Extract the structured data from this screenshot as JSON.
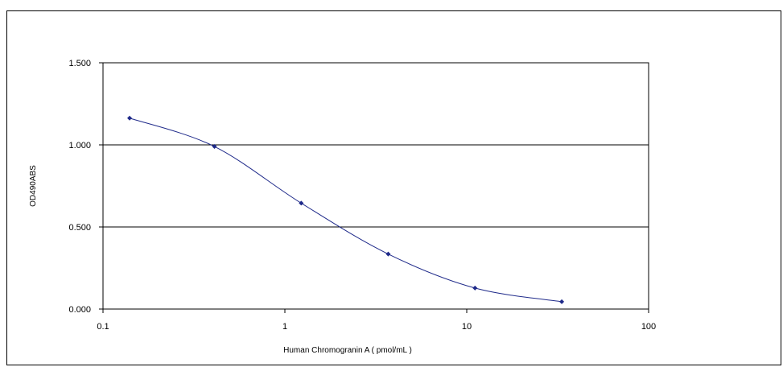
{
  "chart_data": {
    "type": "line",
    "title": "",
    "xlabel": "Human Chromogranin A ( pmol/mL )",
    "ylabel": "OD490ABS",
    "x_scale": "log",
    "xlim": [
      0.1,
      100
    ],
    "ylim": [
      0,
      1.5
    ],
    "x_ticks": [
      "0.1",
      "1",
      "10",
      "100"
    ],
    "y_ticks": [
      "0.000",
      "0.500",
      "1.000",
      "1.500"
    ],
    "grid": "horizontal",
    "legend": "none",
    "colors": {
      "series": "#1f2a8a",
      "grid": "#000000"
    },
    "series": [
      {
        "x": [
          0.14,
          0.41,
          1.23,
          3.7,
          11.1,
          33.3
        ],
        "y": [
          1.163,
          0.99,
          0.645,
          0.335,
          0.128,
          0.045
        ]
      }
    ]
  }
}
